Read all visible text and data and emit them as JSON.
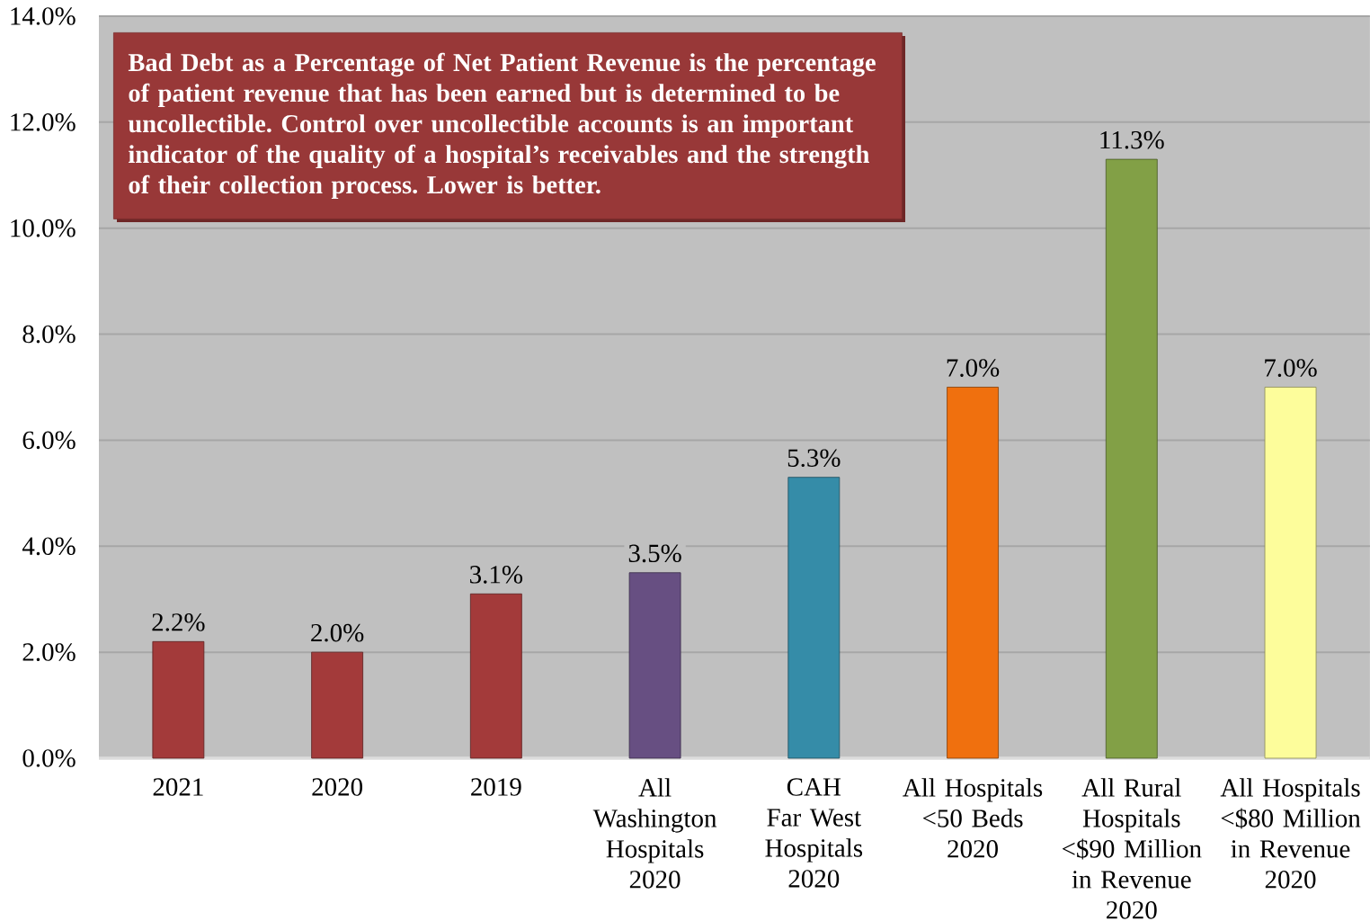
{
  "chart_data": {
    "type": "bar",
    "categories": [
      "2021",
      "2020",
      "2019",
      "All Washington Hospitals 2020",
      "CAH Far West Hospitals 2020",
      "All Hospitals <50 Beds 2020",
      "All Rural Hospitals <$90 Million in Revenue 2020",
      "All Hospitals <$80 Million in Revenue 2020"
    ],
    "values": [
      2.2,
      2.0,
      3.1,
      3.5,
      5.3,
      7.0,
      11.3,
      7.0
    ],
    "colors": [
      "#a33a3a",
      "#a33a3a",
      "#a33a3a",
      "#674f82",
      "#358ca8",
      "#f0700e",
      "#82a046",
      "#fdfd9b"
    ],
    "value_labels": [
      "2.2%",
      "2.0%",
      "3.1%",
      "3.5%",
      "5.3%",
      "7.0%",
      "11.3%",
      "7.0%"
    ],
    "ylim": [
      0,
      14
    ],
    "yticks": [
      {
        "value": 0,
        "label": "0.0%"
      },
      {
        "value": 2,
        "label": "2.0%"
      },
      {
        "value": 4,
        "label": "4.0%"
      },
      {
        "value": 6,
        "label": "6.0%"
      },
      {
        "value": 8,
        "label": "8.0%"
      },
      {
        "value": 10,
        "label": "10.0%"
      },
      {
        "value": 12,
        "label": "12.0%"
      },
      {
        "value": 14,
        "label": "14.0%"
      }
    ],
    "grid": "y",
    "annotations": [
      "Bad Debt as a Percentage of Net Patient Revenue is the percentage of patient revenue that has been earned but is determined to be uncollectible. Control over uncollectible accounts is an important indicator of the quality of a hospital’s receivables and the strength of their collection process. Lower is better."
    ]
  }
}
